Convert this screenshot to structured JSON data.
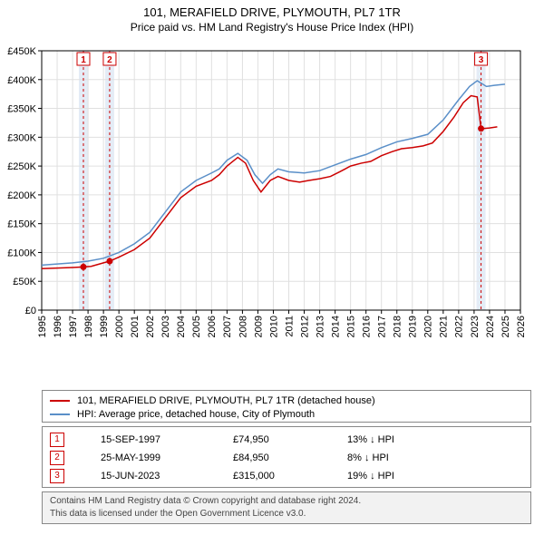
{
  "title": "101, MERAFIELD DRIVE, PLYMOUTH, PL7 1TR",
  "subtitle": "Price paid vs. HM Land Registry's House Price Index (HPI)",
  "chart": {
    "type": "line",
    "background_color": "#ffffff",
    "plot_border_color": "#000000",
    "grid_color": "#e0e0e0",
    "x": {
      "min": 1995,
      "max": 2026,
      "ticks": [
        1995,
        1996,
        1997,
        1998,
        1999,
        2000,
        2001,
        2002,
        2003,
        2004,
        2005,
        2006,
        2007,
        2008,
        2009,
        2010,
        2011,
        2012,
        2013,
        2014,
        2015,
        2016,
        2017,
        2018,
        2019,
        2020,
        2021,
        2022,
        2023,
        2024,
        2025,
        2026
      ],
      "tick_rotation": -90,
      "tick_fontsize": 11
    },
    "y": {
      "min": 0,
      "max": 450000,
      "ticks": [
        0,
        50000,
        100000,
        150000,
        200000,
        250000,
        300000,
        350000,
        400000,
        450000
      ],
      "tick_labels": [
        "£0",
        "£50K",
        "£100K",
        "£150K",
        "£200K",
        "£250K",
        "£300K",
        "£350K",
        "£400K",
        "£450K"
      ],
      "tick_fontsize": 11
    },
    "grid": {
      "horizontal": true,
      "vertical": true
    },
    "series": [
      {
        "id": "price_paid",
        "label": "101, MERAFIELD DRIVE, PLYMOUTH, PL7 1TR (detached house)",
        "color": "#cc0000",
        "line_width": 1.5,
        "points": [
          [
            1995.0,
            72000
          ],
          [
            1996.0,
            73000
          ],
          [
            1997.0,
            74000
          ],
          [
            1997.7,
            74950
          ],
          [
            1998.2,
            76000
          ],
          [
            1999.0,
            82000
          ],
          [
            1999.4,
            84950
          ],
          [
            2000.0,
            92000
          ],
          [
            2001.0,
            105000
          ],
          [
            2002.0,
            125000
          ],
          [
            2003.0,
            160000
          ],
          [
            2004.0,
            195000
          ],
          [
            2005.0,
            215000
          ],
          [
            2006.0,
            225000
          ],
          [
            2006.5,
            235000
          ],
          [
            2007.0,
            250000
          ],
          [
            2007.7,
            265000
          ],
          [
            2008.2,
            255000
          ],
          [
            2008.7,
            225000
          ],
          [
            2009.2,
            205000
          ],
          [
            2009.8,
            225000
          ],
          [
            2010.3,
            232000
          ],
          [
            2011.0,
            225000
          ],
          [
            2011.7,
            222000
          ],
          [
            2012.3,
            225000
          ],
          [
            2013.0,
            228000
          ],
          [
            2013.7,
            232000
          ],
          [
            2014.3,
            240000
          ],
          [
            2015.0,
            250000
          ],
          [
            2015.7,
            255000
          ],
          [
            2016.3,
            258000
          ],
          [
            2017.0,
            268000
          ],
          [
            2017.7,
            275000
          ],
          [
            2018.3,
            280000
          ],
          [
            2019.0,
            282000
          ],
          [
            2019.7,
            285000
          ],
          [
            2020.3,
            290000
          ],
          [
            2021.0,
            310000
          ],
          [
            2021.7,
            335000
          ],
          [
            2022.3,
            360000
          ],
          [
            2022.8,
            372000
          ],
          [
            2023.2,
            370000
          ],
          [
            2023.45,
            315000
          ],
          [
            2023.6,
            315000
          ],
          [
            2024.0,
            316000
          ],
          [
            2024.5,
            318000
          ]
        ]
      },
      {
        "id": "hpi",
        "label": "HPI: Average price, detached house, City of Plymouth",
        "color": "#5a8fc8",
        "line_width": 1.5,
        "points": [
          [
            1995.0,
            78000
          ],
          [
            1996.0,
            80000
          ],
          [
            1997.0,
            82000
          ],
          [
            1998.0,
            85000
          ],
          [
            1999.0,
            90000
          ],
          [
            2000.0,
            100000
          ],
          [
            2001.0,
            115000
          ],
          [
            2002.0,
            135000
          ],
          [
            2003.0,
            170000
          ],
          [
            2004.0,
            205000
          ],
          [
            2005.0,
            225000
          ],
          [
            2006.0,
            238000
          ],
          [
            2006.5,
            245000
          ],
          [
            2007.0,
            260000
          ],
          [
            2007.7,
            272000
          ],
          [
            2008.3,
            260000
          ],
          [
            2008.8,
            235000
          ],
          [
            2009.3,
            220000
          ],
          [
            2009.8,
            235000
          ],
          [
            2010.3,
            245000
          ],
          [
            2011.0,
            240000
          ],
          [
            2012.0,
            238000
          ],
          [
            2013.0,
            242000
          ],
          [
            2014.0,
            252000
          ],
          [
            2015.0,
            262000
          ],
          [
            2016.0,
            270000
          ],
          [
            2017.0,
            282000
          ],
          [
            2018.0,
            292000
          ],
          [
            2019.0,
            298000
          ],
          [
            2020.0,
            305000
          ],
          [
            2021.0,
            330000
          ],
          [
            2022.0,
            365000
          ],
          [
            2022.7,
            388000
          ],
          [
            2023.2,
            398000
          ],
          [
            2023.8,
            388000
          ],
          [
            2024.3,
            390000
          ],
          [
            2025.0,
            392000
          ]
        ]
      }
    ],
    "markers": [
      {
        "n": "1",
        "x": 1997.7,
        "y": 74950,
        "dot_color": "#cc0000",
        "box_border": "#cc0000",
        "vline_color": "#cc0000",
        "vline_dash": "3,3",
        "band_color": "#d8e4f2"
      },
      {
        "n": "2",
        "x": 1999.4,
        "y": 84950,
        "dot_color": "#cc0000",
        "box_border": "#cc0000",
        "vline_color": "#cc0000",
        "vline_dash": "3,3",
        "band_color": "#d8e4f2"
      },
      {
        "n": "3",
        "x": 2023.45,
        "y": 315000,
        "dot_color": "#cc0000",
        "box_border": "#cc0000",
        "vline_color": "#cc0000",
        "vline_dash": "3,3",
        "band_color": "#d8e4f2"
      }
    ],
    "marker_box": {
      "width": 14,
      "height": 14,
      "fontsize": 10
    },
    "marker_dot_radius": 3.5
  },
  "legend": {
    "border_color": "#888888",
    "items": [
      {
        "color": "#cc0000",
        "label": "101, MERAFIELD DRIVE, PLYMOUTH, PL7 1TR (detached house)"
      },
      {
        "color": "#5a8fc8",
        "label": "HPI: Average price, detached house, City of Plymouth"
      }
    ]
  },
  "events": {
    "border_color": "#888888",
    "rows": [
      {
        "n": "1",
        "date": "15-SEP-1997",
        "price": "£74,950",
        "diff": "13% ↓ HPI"
      },
      {
        "n": "2",
        "date": "25-MAY-1999",
        "price": "£84,950",
        "diff": "8% ↓ HPI"
      },
      {
        "n": "3",
        "date": "15-JUN-2023",
        "price": "£315,000",
        "diff": "19% ↓ HPI"
      }
    ]
  },
  "copyright": {
    "line1": "Contains HM Land Registry data © Crown copyright and database right 2024.",
    "line2": "This data is licensed under the Open Government Licence v3.0.",
    "background": "#f2f2f2",
    "border_color": "#888888",
    "text_color": "#444444"
  }
}
